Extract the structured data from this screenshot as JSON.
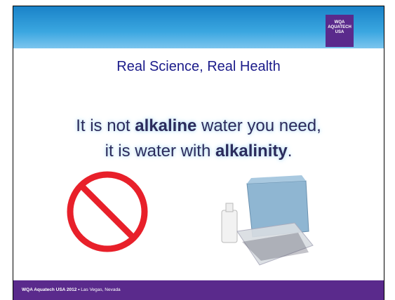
{
  "header": {
    "logo": [
      "WQA",
      "AQUATECH",
      "USA"
    ]
  },
  "slide": {
    "title": "Real Science, Real Health",
    "lines": [
      [
        {
          "text": "It is not ",
          "bold": false
        },
        {
          "text": "alkaline",
          "bold": true
        },
        {
          "text": " water you need,",
          "bold": false
        }
      ],
      [
        {
          "text": "it is water with ",
          "bold": false
        },
        {
          "text": "alkalinity",
          "bold": true
        },
        {
          "text": ".",
          "bold": false
        }
      ]
    ]
  },
  "footer": {
    "event": "WQA Aquatech USA 2012",
    "separator": "•",
    "location": "Las Vegas, Nevada"
  }
}
